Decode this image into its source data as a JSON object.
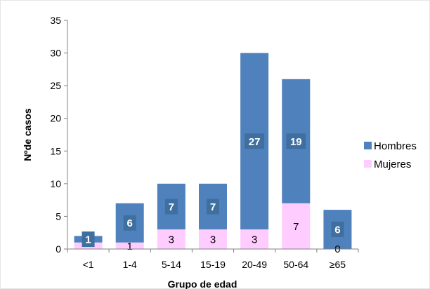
{
  "chart_data": {
    "type": "bar",
    "stacked": true,
    "categories": [
      "<1",
      "1-4",
      "5-14",
      "15-19",
      "20-49",
      "50-64",
      "≥65"
    ],
    "series": [
      {
        "name": "Mujeres",
        "values": [
          1,
          1,
          3,
          3,
          3,
          7,
          0
        ],
        "color": "#ffccff"
      },
      {
        "name": "Hombres",
        "values": [
          1,
          6,
          7,
          7,
          27,
          19,
          6
        ],
        "color": "#4f81bd"
      }
    ],
    "data_labels": {
      "Mujeres": [
        "",
        "1",
        "3",
        "3",
        "3",
        "7",
        "0"
      ],
      "Hombres": [
        "1",
        "6",
        "7",
        "7",
        "27",
        "19",
        "6"
      ]
    },
    "label_box_color": "#3f6f9f",
    "xlabel": "Grupo de edad",
    "ylabel": "Nºde casos",
    "ylim": [
      0,
      35
    ],
    "yticks": [
      0,
      5,
      10,
      15,
      20,
      25,
      30,
      35
    ],
    "legend": {
      "position": "right",
      "order": [
        "Hombres",
        "Mujeres"
      ]
    },
    "grid": false
  }
}
